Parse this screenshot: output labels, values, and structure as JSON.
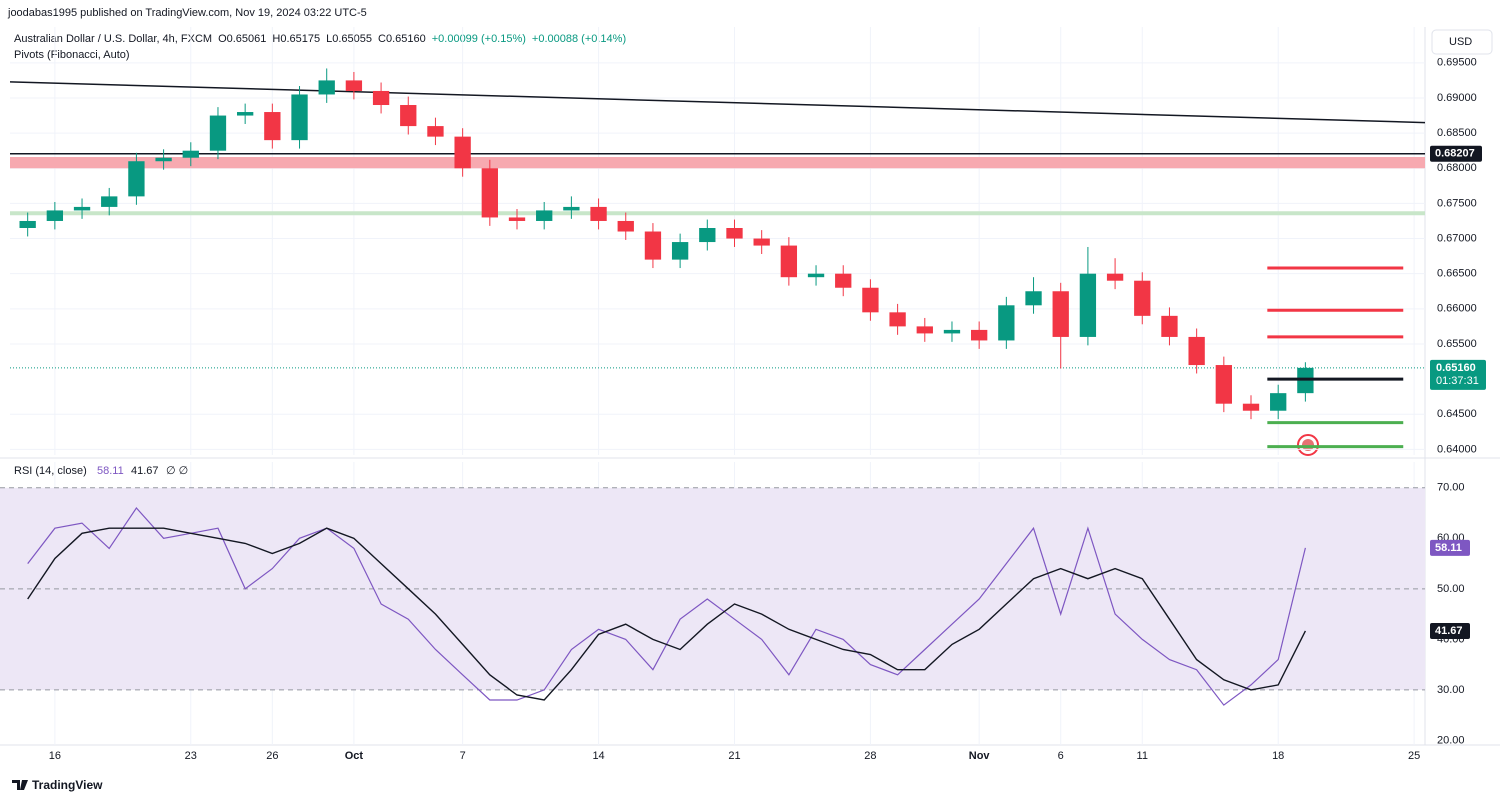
{
  "header": {
    "published": "joodabas1995 published on TradingView.com, Nov 19, 2024 03:22 UTC-5",
    "symbol": "Australian Dollar / U.S. Dollar, 4h, FXCM",
    "ohlc": [
      "O0.65061",
      "H0.65175",
      "L0.65055",
      "C0.65160",
      "+0.00099 (+0.15%)",
      "+0.00088 (+0.14%)"
    ],
    "indicator": "Pivots (Fibonacci, Auto)",
    "currency": "USD",
    "logo": "TradingView"
  },
  "chart_data": [
    {
      "type": "candlestick",
      "x": [
        -1,
        0,
        1,
        2,
        3,
        4,
        5,
        6,
        7,
        8,
        9,
        10,
        11,
        12,
        13,
        14,
        15,
        16,
        17,
        18,
        19,
        20,
        21,
        22,
        23,
        24,
        25,
        26,
        27,
        28,
        29,
        30,
        31,
        32,
        33,
        34,
        35,
        36,
        37,
        38,
        39,
        40,
        41,
        42,
        43,
        44,
        45,
        46
      ],
      "open": [
        0.6715,
        0.6725,
        0.674,
        0.6745,
        0.676,
        0.681,
        0.6815,
        0.6825,
        0.6875,
        0.688,
        0.684,
        0.6905,
        0.6925,
        0.691,
        0.689,
        0.686,
        0.6845,
        0.68,
        0.673,
        0.6725,
        0.674,
        0.6745,
        0.6725,
        0.671,
        0.667,
        0.6695,
        0.6715,
        0.67,
        0.669,
        0.6645,
        0.665,
        0.663,
        0.6595,
        0.6575,
        0.6565,
        0.657,
        0.6555,
        0.6605,
        0.6625,
        0.656,
        0.665,
        0.664,
        0.659,
        0.656,
        0.652,
        0.6465,
        0.6455,
        0.648
      ],
      "high": [
        0.6737,
        0.6752,
        0.6757,
        0.6772,
        0.6822,
        0.6827,
        0.6837,
        0.6887,
        0.6892,
        0.6892,
        0.6917,
        0.6942,
        0.6937,
        0.6922,
        0.6902,
        0.6872,
        0.6857,
        0.6812,
        0.6742,
        0.6752,
        0.676,
        0.6757,
        0.6737,
        0.6722,
        0.6707,
        0.6727,
        0.6727,
        0.6712,
        0.6702,
        0.6662,
        0.6662,
        0.6642,
        0.6607,
        0.6587,
        0.6582,
        0.6582,
        0.6617,
        0.6645,
        0.6637,
        0.6688,
        0.6672,
        0.6652,
        0.6602,
        0.6572,
        0.6532,
        0.6477,
        0.6492,
        0.6524
      ],
      "low": [
        0.6703,
        0.6713,
        0.6728,
        0.6733,
        0.6748,
        0.6798,
        0.6803,
        0.6813,
        0.6863,
        0.6828,
        0.6828,
        0.6893,
        0.6898,
        0.6878,
        0.6848,
        0.6833,
        0.6788,
        0.6718,
        0.6713,
        0.6713,
        0.6728,
        0.6713,
        0.6698,
        0.6658,
        0.6658,
        0.6683,
        0.6688,
        0.6678,
        0.6633,
        0.6633,
        0.6618,
        0.6583,
        0.6563,
        0.6553,
        0.6553,
        0.6543,
        0.6543,
        0.6593,
        0.6515,
        0.6548,
        0.6628,
        0.6578,
        0.6548,
        0.6508,
        0.6453,
        0.6443,
        0.6443,
        0.6468
      ],
      "close": [
        0.6725,
        0.674,
        0.6745,
        0.676,
        0.681,
        0.6815,
        0.6825,
        0.6875,
        0.688,
        0.684,
        0.6905,
        0.6925,
        0.691,
        0.689,
        0.686,
        0.6845,
        0.68,
        0.673,
        0.6725,
        0.674,
        0.6745,
        0.6725,
        0.671,
        0.667,
        0.6695,
        0.6715,
        0.67,
        0.669,
        0.6645,
        0.665,
        0.663,
        0.6595,
        0.6575,
        0.6565,
        0.657,
        0.6555,
        0.6605,
        0.6625,
        0.656,
        0.665,
        0.664,
        0.659,
        0.656,
        0.652,
        0.6465,
        0.6455,
        0.648,
        0.6516
      ],
      "up_color": "#089981",
      "down_color": "#f23645",
      "xlim": [
        -1.65,
        50.4
      ],
      "xticks": [
        {
          "value": 0,
          "label": "16"
        },
        {
          "value": 5,
          "label": "23"
        },
        {
          "value": 8,
          "label": "26"
        },
        {
          "value": 11,
          "label": "Oct"
        },
        {
          "value": 15,
          "label": "7"
        },
        {
          "value": 20,
          "label": "14"
        },
        {
          "value": 25,
          "label": "21"
        },
        {
          "value": 30,
          "label": "28"
        },
        {
          "value": 34,
          "label": "Nov"
        },
        {
          "value": 37,
          "label": "6"
        },
        {
          "value": 40,
          "label": "11"
        },
        {
          "value": 45,
          "label": "18"
        },
        {
          "value": 50,
          "label": "25"
        }
      ],
      "ylim": [
        0.6392,
        0.7001
      ],
      "yticks": [
        {
          "value": 0.695,
          "label": "0.69500"
        },
        {
          "value": 0.69,
          "label": "0.69000"
        },
        {
          "value": 0.685,
          "label": "0.68500"
        },
        {
          "value": 0.68,
          "label": "0.68000"
        },
        {
          "value": 0.675,
          "label": "0.67500"
        },
        {
          "value": 0.67,
          "label": "0.67000"
        },
        {
          "value": 0.665,
          "label": "0.66500"
        },
        {
          "value": 0.66,
          "label": "0.66000"
        },
        {
          "value": 0.655,
          "label": "0.65500"
        },
        {
          "value": 0.645,
          "label": "0.64500"
        },
        {
          "value": 0.64,
          "label": "0.64000"
        }
      ],
      "grid": true,
      "trendline": {
        "x": [
          -1.65,
          50.4
        ],
        "y": [
          0.6923,
          0.6865
        ],
        "color": "#131722"
      },
      "zones": [
        {
          "from": 0.68,
          "to": 0.6816,
          "color": "#f7a9b0"
        }
      ],
      "hlines": [
        {
          "value": 0.68207,
          "label": "0.68207",
          "color": "#131722"
        },
        {
          "value": 0.6736,
          "color": "#c8e6c9"
        }
      ],
      "pivots": [
        {
          "value": 0.6658,
          "color": "#f23645",
          "x": [
            44.6,
            49.6
          ]
        },
        {
          "value": 0.6598,
          "color": "#f23645",
          "x": [
            44.6,
            49.6
          ]
        },
        {
          "value": 0.656,
          "color": "#f23645",
          "x": [
            44.6,
            49.6
          ]
        },
        {
          "value": 0.65,
          "color": "#131722",
          "x": [
            44.6,
            49.6
          ]
        },
        {
          "value": 0.6438,
          "color": "#4caf50",
          "x": [
            44.6,
            49.6
          ]
        },
        {
          "value": 0.6404,
          "color": "#4caf50",
          "x": [
            44.6,
            49.6
          ]
        }
      ],
      "last_price": {
        "value": 0.6516,
        "label": "0.65160",
        "countdown": "01:37:31",
        "color": "#089981"
      }
    },
    {
      "type": "line",
      "title": "RSI (14, close)",
      "legend_extra": "∅ ∅",
      "x": [
        -1,
        0,
        1,
        2,
        3,
        4,
        5,
        6,
        7,
        8,
        9,
        10,
        11,
        12,
        13,
        14,
        15,
        16,
        17,
        18,
        19,
        20,
        21,
        22,
        23,
        24,
        25,
        26,
        27,
        28,
        29,
        30,
        31,
        32,
        33,
        34,
        35,
        36,
        37,
        38,
        39,
        40,
        41,
        42,
        43,
        44,
        45,
        46
      ],
      "series": [
        {
          "name": "RSI",
          "color": "#7e57c2",
          "values": [
            55,
            62,
            63,
            58,
            66,
            60,
            61,
            62,
            50,
            54,
            60,
            62,
            58,
            47,
            44,
            38,
            33,
            28,
            28,
            30,
            38,
            42,
            40,
            34,
            44,
            48,
            44,
            40,
            33,
            42,
            40,
            35,
            33,
            38,
            43,
            48,
            55,
            62,
            45,
            62,
            45,
            40,
            36,
            34,
            27,
            31,
            36,
            58.11
          ]
        },
        {
          "name": "RSI-based MA",
          "color": "#131722",
          "values": [
            48,
            56,
            61,
            62,
            62,
            62,
            61,
            60,
            59,
            57,
            59,
            62,
            60,
            55,
            50,
            45,
            39,
            33,
            29,
            28,
            34,
            41,
            43,
            40,
            38,
            43,
            47,
            45,
            42,
            40,
            38,
            37,
            34,
            34,
            39,
            42,
            47,
            52,
            54,
            52,
            54,
            52,
            44,
            36,
            32,
            30,
            31,
            41.67
          ]
        }
      ],
      "band": [
        30,
        70
      ],
      "band_color": "#ede7f6",
      "ylim": [
        19.1,
        75.1
      ],
      "yticks": [
        {
          "value": 20,
          "label": "20.00"
        },
        {
          "value": 30,
          "label": "30.00"
        },
        {
          "value": 40,
          "label": "40.00"
        },
        {
          "value": 50,
          "label": "50.00"
        },
        {
          "value": 60,
          "label": "60.00"
        },
        {
          "value": 70,
          "label": "70.00"
        }
      ],
      "dashed": [
        30,
        50,
        70
      ]
    }
  ]
}
